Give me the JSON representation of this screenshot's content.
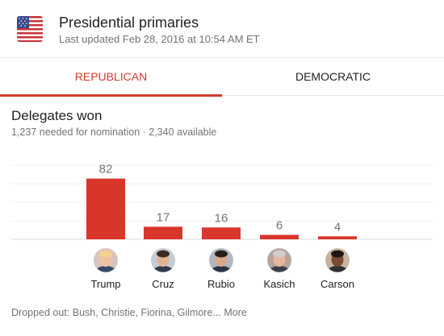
{
  "header": {
    "title": "Presidential primaries",
    "subtitle": "Last updated Feb 28, 2016 at 10:54 AM ET",
    "flag_icon": "us-flag-icon"
  },
  "tabs": [
    {
      "label": "REPUBLICAN",
      "selected": true
    },
    {
      "label": "DEMOCRATIC",
      "selected": false
    }
  ],
  "section": {
    "title": "Delegates won",
    "subtitle": "1,237 needed for nomination · 2,340 available"
  },
  "colors": {
    "accent": "#d23a2c",
    "bar": "#d9362b",
    "muted": "#70757a"
  },
  "chart_data": {
    "type": "bar",
    "categories": [
      "Trump",
      "Cruz",
      "Rubio",
      "Kasich",
      "Carson"
    ],
    "values": [
      82,
      17,
      16,
      6,
      4
    ],
    "title": "Delegates won",
    "xlabel": "",
    "ylabel": "",
    "ylim": [
      0,
      100
    ],
    "grid": true,
    "data_labels": true,
    "category_icon": "candidate-photo"
  },
  "footer": {
    "dropped_text": "Dropped out: Bush, Christie, Fiorina, Gilmore...",
    "more_label": "More"
  }
}
